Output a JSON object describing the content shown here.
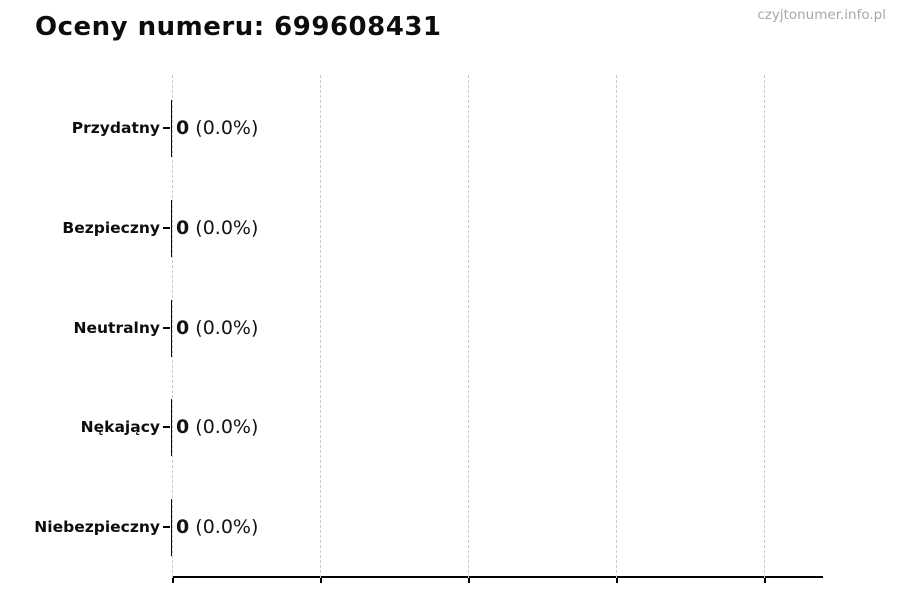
{
  "header": {
    "title": "Oceny numeru: 699608431",
    "watermark": "czyjtonumer.info.pl"
  },
  "chart_data": {
    "type": "bar",
    "orientation": "horizontal",
    "title": "Oceny numeru: 699608431",
    "categories": [
      "Przydatny",
      "Bezpieczny",
      "Neutralny",
      "Nękający",
      "Niebezpieczny"
    ],
    "values": [
      0,
      0,
      0,
      0,
      0
    ],
    "count_labels": [
      "0",
      "0",
      "0",
      "0",
      "0"
    ],
    "percent_labels": [
      "(0.0%)",
      "(0.0%)",
      "(0.0%)",
      "(0.0%)",
      "(0.0%)"
    ],
    "xlabel": "",
    "ylabel": "",
    "xlim": [
      0,
      1
    ],
    "x_gridlines": 5,
    "grid_style": "vertical-dashed",
    "legend": "none",
    "colors": {
      "bar_edge": "#000000",
      "gridline": "#c9c9c9",
      "axis": "#000000",
      "text": "#0d0d0d",
      "watermark": "#a8a8a8",
      "background": "#ffffff"
    }
  }
}
